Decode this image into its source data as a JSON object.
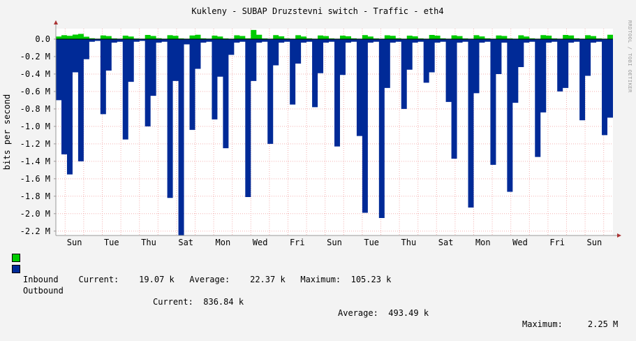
{
  "chart_data": {
    "type": "area",
    "title": "Kukleny - SUBAP Druzstevni switch - Traffic - eth4",
    "ylabel": "bits per second",
    "watermark": "RRDTOOL / TOBI OETIKER",
    "ylim": [
      -2250000,
      120000
    ],
    "yticks": [
      {
        "value": 0,
        "label": "0.0"
      },
      {
        "value": -200000,
        "label": "-0.2 M"
      },
      {
        "value": -400000,
        "label": "-0.4 M"
      },
      {
        "value": -600000,
        "label": "-0.6 M"
      },
      {
        "value": -800000,
        "label": "-0.8 M"
      },
      {
        "value": -1000000,
        "label": "-1.0 M"
      },
      {
        "value": -1200000,
        "label": "-1.2 M"
      },
      {
        "value": -1400000,
        "label": "-1.4 M"
      },
      {
        "value": -1600000,
        "label": "-1.6 M"
      },
      {
        "value": -1800000,
        "label": "-1.8 M"
      },
      {
        "value": -2000000,
        "label": "-2.0 M"
      },
      {
        "value": -2200000,
        "label": "-2.2 M"
      }
    ],
    "xlim": [
      0,
      30
    ],
    "xticks": [
      {
        "value": 1,
        "label": "Sun"
      },
      {
        "value": 3,
        "label": "Tue"
      },
      {
        "value": 5,
        "label": "Thu"
      },
      {
        "value": 7,
        "label": "Sat"
      },
      {
        "value": 9,
        "label": "Mon"
      },
      {
        "value": 11,
        "label": "Wed"
      },
      {
        "value": 13,
        "label": "Fri"
      },
      {
        "value": 15,
        "label": "Sun"
      },
      {
        "value": 17,
        "label": "Tue"
      },
      {
        "value": 19,
        "label": "Thu"
      },
      {
        "value": 21,
        "label": "Sat"
      },
      {
        "value": 23,
        "label": "Mon"
      },
      {
        "value": 25,
        "label": "Wed"
      },
      {
        "value": 27,
        "label": "Fri"
      },
      {
        "value": 29,
        "label": "Sun"
      }
    ],
    "series": [
      {
        "name": "Inbound",
        "color": "#00cc00",
        "current": "19.07 k",
        "average": "22.37 k",
        "maximum": "105.23 k",
        "x": [
          0,
          0.3,
          0.6,
          0.9,
          1.2,
          1.5,
          1.8,
          2.1,
          2.4,
          2.7,
          3.0,
          3.3,
          3.6,
          3.9,
          4.2,
          4.5,
          4.8,
          5.1,
          5.4,
          5.7,
          6.0,
          6.3,
          6.6,
          6.9,
          7.2,
          7.5,
          7.8,
          8.1,
          8.4,
          8.7,
          9.0,
          9.3,
          9.6,
          9.9,
          10.2,
          10.5,
          10.8,
          11.1,
          11.4,
          11.7,
          12.0,
          12.3,
          12.6,
          12.9,
          13.2,
          13.5,
          13.8,
          14.1,
          14.4,
          14.7,
          15.0,
          15.3,
          15.6,
          15.9,
          16.2,
          16.5,
          16.8,
          17.1,
          17.4,
          17.7,
          18.0,
          18.3,
          18.6,
          18.9,
          19.2,
          19.5,
          19.8,
          20.1,
          20.4,
          20.7,
          21.0,
          21.3,
          21.6,
          21.9,
          22.2,
          22.5,
          22.8,
          23.1,
          23.4,
          23.7,
          24.0,
          24.3,
          24.6,
          24.9,
          25.2,
          25.5,
          25.8,
          26.1,
          26.4,
          26.7,
          27.0,
          27.3,
          27.6,
          27.9,
          28.2,
          28.5,
          28.8,
          29.1,
          29.4,
          29.7,
          30.0
        ],
        "values": [
          30000,
          45000,
          38000,
          52000,
          60000,
          28000,
          10000,
          5000,
          42000,
          35000,
          8000,
          5000,
          40000,
          30000,
          7000,
          5000,
          48000,
          36000,
          10000,
          5000,
          45000,
          38000,
          8000,
          5000,
          42000,
          50000,
          9000,
          6000,
          40000,
          30000,
          8000,
          5000,
          44000,
          36000,
          9000,
          105000,
          50000,
          8000,
          5000,
          46000,
          32000,
          8000,
          5000,
          45000,
          30000,
          9000,
          5000,
          42000,
          35000,
          8000,
          5000,
          40000,
          33000,
          9000,
          5000,
          46000,
          30000,
          8000,
          5000,
          44000,
          38000,
          10000,
          5000,
          40000,
          32000,
          8000,
          5000,
          48000,
          40000,
          9000,
          5000,
          43000,
          35000,
          8000,
          5000,
          45000,
          31000,
          9000,
          5000,
          42000,
          36000,
          8000,
          5000,
          44000,
          30000,
          9000,
          5000,
          46000,
          40000,
          8000,
          5000,
          48000,
          42000,
          9000,
          5000,
          45000,
          35000,
          8000,
          5000,
          50000,
          19070
        ]
      },
      {
        "name": "Outbound",
        "color": "#002a97",
        "current": "836.84 k",
        "average": "493.49 k",
        "maximum": "2.25 M",
        "x": [
          0,
          0.3,
          0.6,
          0.9,
          1.2,
          1.5,
          1.8,
          2.1,
          2.4,
          2.7,
          3.0,
          3.3,
          3.6,
          3.9,
          4.2,
          4.5,
          4.8,
          5.1,
          5.4,
          5.7,
          6.0,
          6.3,
          6.6,
          6.9,
          7.2,
          7.5,
          7.8,
          8.1,
          8.4,
          8.7,
          9.0,
          9.3,
          9.6,
          9.9,
          10.2,
          10.5,
          10.8,
          11.1,
          11.4,
          11.7,
          12.0,
          12.3,
          12.6,
          12.9,
          13.2,
          13.5,
          13.8,
          14.1,
          14.4,
          14.7,
          15.0,
          15.3,
          15.6,
          15.9,
          16.2,
          16.5,
          16.8,
          17.1,
          17.4,
          17.7,
          18.0,
          18.3,
          18.6,
          18.9,
          19.2,
          19.5,
          19.8,
          20.1,
          20.4,
          20.7,
          21.0,
          21.3,
          21.6,
          21.9,
          22.2,
          22.5,
          22.8,
          23.1,
          23.4,
          23.7,
          24.0,
          24.3,
          24.6,
          24.9,
          25.2,
          25.5,
          25.8,
          26.1,
          26.4,
          26.7,
          27.0,
          27.3,
          27.6,
          27.9,
          28.2,
          28.5,
          28.8,
          29.1,
          29.4,
          29.7,
          30.0
        ],
        "values": [
          -700000,
          -1320000,
          -1550000,
          -380000,
          -1400000,
          -230000,
          -30000,
          -20000,
          -860000,
          -360000,
          -40000,
          -30000,
          -1150000,
          -490000,
          -30000,
          -20000,
          -1000000,
          -650000,
          -40000,
          -30000,
          -1820000,
          -480000,
          -2250000,
          -60000,
          -1040000,
          -340000,
          -40000,
          -30000,
          -920000,
          -430000,
          -1250000,
          -180000,
          -40000,
          -30000,
          -1810000,
          -480000,
          -40000,
          -30000,
          -1200000,
          -300000,
          -40000,
          -30000,
          -750000,
          -280000,
          -40000,
          -30000,
          -780000,
          -390000,
          -40000,
          -30000,
          -1230000,
          -410000,
          -40000,
          -30000,
          -1110000,
          -1990000,
          -40000,
          -30000,
          -2050000,
          -560000,
          -40000,
          -30000,
          -800000,
          -350000,
          -40000,
          -30000,
          -500000,
          -380000,
          -40000,
          -30000,
          -720000,
          -1370000,
          -40000,
          -30000,
          -1930000,
          -620000,
          -40000,
          -30000,
          -1440000,
          -400000,
          -40000,
          -1750000,
          -730000,
          -320000,
          -40000,
          -30000,
          -1350000,
          -840000,
          -40000,
          -30000,
          -600000,
          -560000,
          -40000,
          -30000,
          -930000,
          -420000,
          -40000,
          -30000,
          -1100000,
          -900000,
          -836840
        ]
      }
    ],
    "grid": true,
    "legend_position": "bottom"
  },
  "legend": {
    "inbound_line": "Inbound    Current:    19.07 k   Average:    22.37 k   Maximum:  105.23 k",
    "outbound_label": "Outbound",
    "outbound_current": "Current:  836.84 k",
    "outbound_average": "Average:  493.49 k",
    "outbound_maximum": "Maximum:     2.25 M"
  }
}
